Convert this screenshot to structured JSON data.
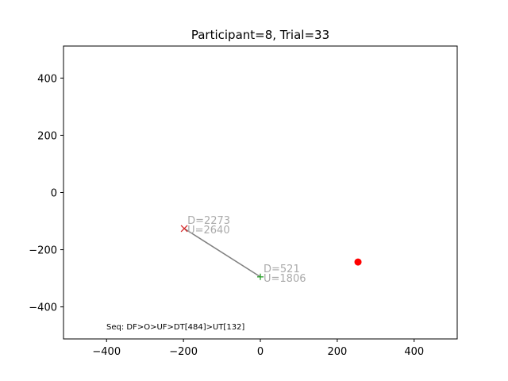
{
  "chart_data": {
    "type": "scatter",
    "title": "Participant=8, Trial=33",
    "xlabel": "",
    "ylabel": "",
    "xlim": [
      -512,
      512
    ],
    "ylim": [
      -512,
      512
    ],
    "xticks": [
      -400,
      -200,
      0,
      200,
      400
    ],
    "yticks": [
      400,
      200,
      0,
      -200,
      -400
    ],
    "xtick_labels": [
      "−400",
      "−200",
      "0",
      "200",
      "400"
    ],
    "ytick_labels": [
      "400",
      "200",
      "0",
      "−200",
      "−400"
    ],
    "grid": false,
    "legend": "none",
    "path": {
      "start": [
        -198,
        -126
      ],
      "end": [
        0,
        -295
      ],
      "color": "#808080"
    },
    "points": [
      {
        "kind": "x-marker",
        "x": -198,
        "y": -126,
        "color": "#d62728",
        "labels": [
          "D=2273",
          "U=2640"
        ]
      },
      {
        "kind": "plus-marker",
        "x": 0,
        "y": -295,
        "color": "#2ca02c",
        "labels": [
          "D=521",
          "U=1806"
        ]
      },
      {
        "kind": "target-dot",
        "x": 254,
        "y": -243,
        "color": "#ff0000",
        "labels": []
      }
    ],
    "annotation_color": "#aaaaaa",
    "sequence_text": "Seq: DF>O>UF>DT[484]>UT[132]"
  }
}
